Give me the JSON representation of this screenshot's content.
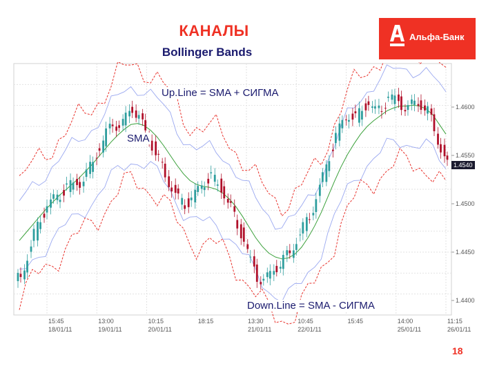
{
  "slide": {
    "title": "КАНАЛЫ",
    "subtitle": "Bollinger Bands",
    "page_number": "18"
  },
  "logo": {
    "text": "Альфа-Банк",
    "color": "#ef3124"
  },
  "annotations": {
    "upline": "Up.Line = SMA + СИГМА",
    "sma": "SMA",
    "downline": "Down.Line = SMA - СИГМА"
  },
  "colors": {
    "upper_band": "#e8302a",
    "lower_band": "#e8302a",
    "sma": "#3aa03a",
    "inner_band": "#9aa8f0",
    "bull_candle": "#2e9e9e",
    "bear_candle": "#b0102a",
    "price_tag": "#1a1a2e"
  },
  "chart_data": {
    "type": "line",
    "title": "",
    "xlabel": "",
    "ylabel": "",
    "grid": true,
    "ylim": [
      1.4385,
      1.4645
    ],
    "x_ticks": [
      [
        "15:45",
        "18/01/11"
      ],
      [
        "13:00",
        "19/01/11"
      ],
      [
        "10:15",
        "20/01/11"
      ],
      [
        "18:15",
        ""
      ],
      [
        "13:30",
        "21/01/11"
      ],
      [
        "10:45",
        "22/01/11"
      ],
      [
        "15:45",
        ""
      ],
      [
        "14:00",
        "25/01/11"
      ],
      [
        "11:15",
        "26/01/11"
      ]
    ],
    "y_ticks": [
      "1.4600",
      "1.4550",
      "1.4500",
      "1.4450",
      "1.4400"
    ],
    "last_price": "1.4540",
    "close": [
      1.4425,
      1.4445,
      1.4468,
      1.4485,
      1.4498,
      1.4505,
      1.451,
      1.4518,
      1.452,
      1.4522,
      1.453,
      1.4545,
      1.4558,
      1.4572,
      1.4585,
      1.4578,
      1.459,
      1.46,
      1.4588,
      1.4575,
      1.456,
      1.4545,
      1.453,
      1.4515,
      1.4505,
      1.45,
      1.4505,
      1.4515,
      1.4523,
      1.4528,
      1.452,
      1.451,
      1.4495,
      1.4478,
      1.4462,
      1.444,
      1.4425,
      1.442,
      1.4428,
      1.4435,
      1.4442,
      1.445,
      1.4462,
      1.4475,
      1.4488,
      1.4505,
      1.4528,
      1.455,
      1.457,
      1.4585,
      1.4592,
      1.4588,
      1.4598,
      1.4605,
      1.4595,
      1.46,
      1.461,
      1.4608,
      1.4603,
      1.4598,
      1.4606,
      1.4602,
      1.4595,
      1.4578,
      1.4555,
      1.454
    ],
    "sma": [
      1.4462,
      1.447,
      1.4478,
      1.4486,
      1.4494,
      1.4501,
      1.4508,
      1.4514,
      1.452,
      1.4526,
      1.4533,
      1.454,
      1.4548,
      1.4556,
      1.4564,
      1.4571,
      1.4577,
      1.4582,
      1.4583,
      1.4581,
      1.4576,
      1.4569,
      1.456,
      1.455,
      1.454,
      1.4531,
      1.4524,
      1.452,
      1.4518,
      1.4517,
      1.4515,
      1.4511,
      1.4505,
      1.4497,
      1.4487,
      1.4476,
      1.4465,
      1.4456,
      1.4449,
      1.4445,
      1.4443,
      1.4444,
      1.4448,
      1.4455,
      1.4465,
      1.4477,
      1.4491,
      1.4507,
      1.4523,
      1.4538,
      1.4551,
      1.4562,
      1.4572,
      1.458,
      1.4586,
      1.4591,
      1.4596,
      1.4599,
      1.4601,
      1.4601,
      1.4602,
      1.4601,
      1.4598,
      1.4592,
      1.4582,
      1.4572
    ],
    "series": [
      {
        "name": "Up.Line = SMA + СИГМА",
        "key": "upper"
      },
      {
        "name": "SMA",
        "key": "sma"
      },
      {
        "name": "Down.Line = SMA - СИГМА",
        "key": "lower"
      }
    ],
    "band_width": 0.006,
    "inner_band_width": 0.0038
  }
}
